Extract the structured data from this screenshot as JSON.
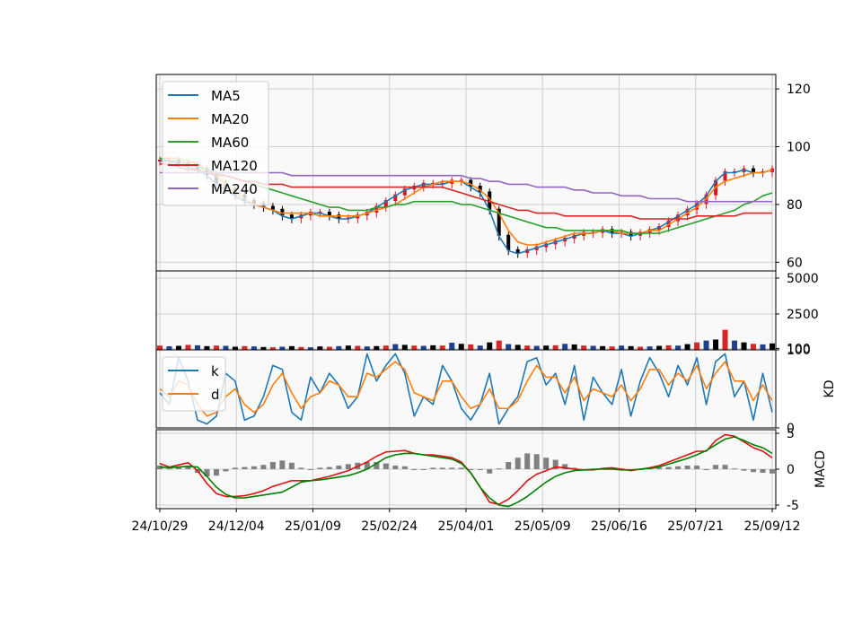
{
  "chart_data": {
    "type": "line",
    "x_ticks": [
      "24/10/29",
      "24/12/04",
      "25/01/09",
      "25/02/24",
      "25/04/01",
      "25/05/09",
      "25/06/16",
      "25/07/21",
      "25/09/12"
    ],
    "panels": [
      {
        "id": "price",
        "kind": "candlestick-with-moving-averages",
        "ylim": [
          57,
          125
        ],
        "yticks": [
          "60",
          "80",
          "100",
          "120"
        ],
        "grid": true,
        "legend_position": "top-left",
        "series": [
          {
            "name": "MA5",
            "color": "#1f77b4",
            "values": [
              95,
              95,
              94,
              93,
              92,
              90,
              87,
              85,
              83,
              81,
              80,
              79,
              78,
              76,
              75,
              76,
              77,
              77,
              76,
              75,
              75,
              76,
              77,
              79,
              81,
              83,
              85,
              86,
              87,
              87,
              87,
              88,
              88,
              86,
              84,
              78,
              69,
              64,
              63,
              64,
              65,
              66,
              67,
              68,
              69,
              70,
              70,
              71,
              70,
              70,
              69,
              70,
              71,
              72,
              74,
              76,
              78,
              80,
              83,
              88,
              91,
              91,
              92,
              91,
              91,
              92
            ]
          },
          {
            "name": "MA20",
            "color": "#ff7f0e",
            "values": [
              96,
              96,
              96,
              95,
              94,
              92,
              90,
              87,
              84,
              82,
              80,
              79,
              78,
              77,
              77,
              77,
              77,
              76,
              76,
              76,
              76,
              76,
              77,
              78,
              79,
              80,
              82,
              84,
              86,
              87,
              88,
              88,
              88,
              87,
              85,
              82,
              77,
              71,
              67,
              66,
              66,
              67,
              68,
              69,
              70,
              70,
              70,
              71,
              71,
              70,
              70,
              70,
              71,
              71,
              73,
              75,
              77,
              79,
              82,
              86,
              88,
              89,
              90,
              91,
              91,
              92
            ]
          },
          {
            "name": "MA60",
            "color": "#2ca02c",
            "values": [
              96,
              95,
              95,
              94,
              93,
              92,
              91,
              90,
              89,
              88,
              87,
              86,
              85,
              84,
              83,
              82,
              81,
              80,
              79,
              79,
              78,
              78,
              78,
              79,
              79,
              80,
              80,
              81,
              81,
              81,
              81,
              81,
              80,
              80,
              79,
              78,
              77,
              76,
              75,
              74,
              73,
              72,
              72,
              71,
              71,
              71,
              71,
              71,
              71,
              71,
              70,
              70,
              70,
              70,
              71,
              72,
              73,
              74,
              75,
              76,
              77,
              78,
              80,
              81,
              83,
              84
            ]
          },
          {
            "name": "MA120",
            "color": "#d62728",
            "values": [
              94,
              94,
              93,
              92,
              92,
              91,
              90,
              90,
              89,
              88,
              88,
              87,
              87,
              87,
              86,
              86,
              86,
              86,
              86,
              86,
              86,
              86,
              86,
              86,
              86,
              86,
              86,
              86,
              86,
              86,
              86,
              85,
              84,
              83,
              82,
              81,
              80,
              79,
              78,
              78,
              77,
              77,
              77,
              76,
              76,
              76,
              76,
              76,
              76,
              76,
              76,
              75,
              75,
              75,
              75,
              75,
              75,
              76,
              76,
              76,
              76,
              76,
              77,
              77,
              77,
              77
            ]
          },
          {
            "name": "MA240",
            "color": "#9467bd",
            "values": [
              91,
              91,
              91,
              91,
              91,
              91,
              91,
              91,
              91,
              91,
              91,
              91,
              91,
              91,
              90,
              90,
              90,
              90,
              90,
              90,
              90,
              90,
              90,
              90,
              90,
              90,
              90,
              90,
              90,
              90,
              90,
              90,
              90,
              89,
              89,
              88,
              88,
              87,
              87,
              87,
              86,
              86,
              86,
              86,
              85,
              85,
              84,
              84,
              84,
              83,
              83,
              83,
              82,
              82,
              82,
              82,
              81,
              81,
              81,
              81,
              81,
              81,
              81,
              81,
              81,
              81
            ]
          }
        ]
      },
      {
        "id": "volume",
        "kind": "bar",
        "ylim": [
          0,
          5500
        ],
        "yticks": [
          "100",
          "2500",
          "5000"
        ],
        "grid": true,
        "values": [
          300,
          250,
          280,
          350,
          320,
          260,
          300,
          280,
          220,
          260,
          240,
          200,
          180,
          220,
          260,
          200,
          180,
          240,
          220,
          260,
          300,
          280,
          240,
          260,
          300,
          400,
          350,
          300,
          280,
          320,
          300,
          500,
          420,
          380,
          300,
          520,
          650,
          400,
          350,
          300,
          280,
          300,
          320,
          420,
          380,
          300,
          280,
          260,
          240,
          300,
          260,
          220,
          240,
          280,
          320,
          300,
          400,
          520,
          650,
          720,
          1400,
          650,
          520,
          420,
          380,
          450
        ]
      },
      {
        "id": "kd",
        "kind": "line",
        "ylim": [
          0,
          100
        ],
        "yticks": [
          "0",
          "100"
        ],
        "ylabel": "KD",
        "grid": true,
        "legend_position": "top-left",
        "series": [
          {
            "name": "k",
            "color": "#1f77b4",
            "values": [
              45,
              30,
              90,
              60,
              10,
              5,
              15,
              70,
              60,
              10,
              15,
              40,
              80,
              75,
              20,
              10,
              65,
              45,
              70,
              55,
              25,
              40,
              95,
              60,
              80,
              95,
              70,
              15,
              40,
              30,
              80,
              60,
              25,
              10,
              30,
              70,
              5,
              25,
              40,
              85,
              90,
              55,
              70,
              30,
              80,
              10,
              65,
              45,
              30,
              75,
              15,
              60,
              90,
              70,
              40,
              80,
              55,
              90,
              30,
              85,
              95,
              40,
              60,
              10,
              70,
              20
            ]
          },
          {
            "name": "d",
            "color": "#ff7f0e",
            "values": [
              50,
              40,
              60,
              55,
              30,
              15,
              20,
              40,
              50,
              30,
              20,
              30,
              55,
              70,
              45,
              25,
              40,
              45,
              60,
              55,
              40,
              40,
              70,
              65,
              75,
              85,
              75,
              45,
              40,
              35,
              60,
              60,
              40,
              25,
              30,
              50,
              25,
              25,
              35,
              60,
              80,
              65,
              65,
              45,
              65,
              35,
              50,
              45,
              40,
              55,
              35,
              50,
              75,
              75,
              55,
              70,
              60,
              80,
              50,
              70,
              85,
              60,
              60,
              35,
              55,
              35
            ]
          }
        ]
      },
      {
        "id": "macd",
        "kind": "line-with-histogram",
        "ylim": [
          -5.5,
          5.5
        ],
        "yticks": [
          "-5",
          "0",
          "5"
        ],
        "ylabel": "MACD",
        "grid": true,
        "series": [
          {
            "name": "",
            "color": "#dd1111",
            "values": [
              0.8,
              0.3,
              0.6,
              0.9,
              -0.2,
              -2.0,
              -3.4,
              -3.8,
              -3.8,
              -3.7,
              -3.4,
              -3.0,
              -2.4,
              -2.0,
              -1.6,
              -1.6,
              -1.6,
              -1.3,
              -1.0,
              -0.6,
              -0.2,
              0.4,
              1.0,
              1.8,
              2.4,
              2.5,
              2.6,
              2.2,
              2.0,
              2.0,
              1.8,
              1.6,
              1.0,
              -0.5,
              -2.5,
              -4.6,
              -4.9,
              -4.2,
              -3.0,
              -1.6,
              -0.7,
              -0.2,
              0.3,
              0.2,
              0.0,
              -0.1,
              -0.1,
              0.1,
              0.2,
              0.0,
              -0.2,
              0.0,
              0.2,
              0.5,
              1.0,
              1.5,
              2.0,
              2.5,
              2.5,
              4.0,
              4.8,
              4.6,
              3.8,
              3.0,
              2.5,
              1.6
            ]
          },
          {
            "name": "",
            "color": "#008000",
            "values": [
              0.3,
              0.2,
              0.3,
              0.4,
              0.3,
              -1.0,
              -2.5,
              -3.5,
              -4.0,
              -4.0,
              -3.8,
              -3.6,
              -3.4,
              -3.2,
              -2.5,
              -1.8,
              -1.6,
              -1.5,
              -1.3,
              -1.1,
              -0.9,
              -0.5,
              0.0,
              0.8,
              1.6,
              2.0,
              2.2,
              2.2,
              2.0,
              1.8,
              1.6,
              1.4,
              0.8,
              -0.5,
              -2.5,
              -4.0,
              -5.0,
              -5.2,
              -4.6,
              -3.8,
              -2.8,
              -1.8,
              -1.0,
              -0.5,
              -0.2,
              -0.1,
              0.0,
              0.0,
              0.0,
              -0.1,
              -0.1,
              0.0,
              0.1,
              0.3,
              0.7,
              1.1,
              1.5,
              2.0,
              2.6,
              3.4,
              4.2,
              4.5,
              4.0,
              3.4,
              3.0,
              2.2
            ]
          }
        ],
        "histogram": [
          0.5,
          0.1,
          0.3,
          0.5,
          -0.5,
          -1.0,
          -0.9,
          -0.3,
          0.2,
          0.3,
          0.4,
          0.6,
          1.0,
          1.2,
          0.9,
          0.2,
          0.0,
          0.2,
          0.3,
          0.5,
          0.7,
          0.9,
          1.0,
          1.0,
          0.8,
          0.5,
          0.4,
          0.0,
          0.0,
          0.2,
          0.2,
          0.2,
          0.2,
          0.0,
          0.0,
          -0.6,
          0.1,
          1.0,
          1.6,
          2.2,
          2.1,
          1.6,
          1.3,
          0.7,
          0.2,
          0.0,
          -0.1,
          0.1,
          0.2,
          0.1,
          -0.1,
          0.0,
          0.1,
          0.2,
          0.3,
          0.4,
          0.5,
          0.5,
          -0.1,
          0.6,
          0.6,
          0.1,
          -0.2,
          -0.4,
          -0.5,
          -0.6
        ],
        "histogram_color": "#808080"
      }
    ]
  }
}
